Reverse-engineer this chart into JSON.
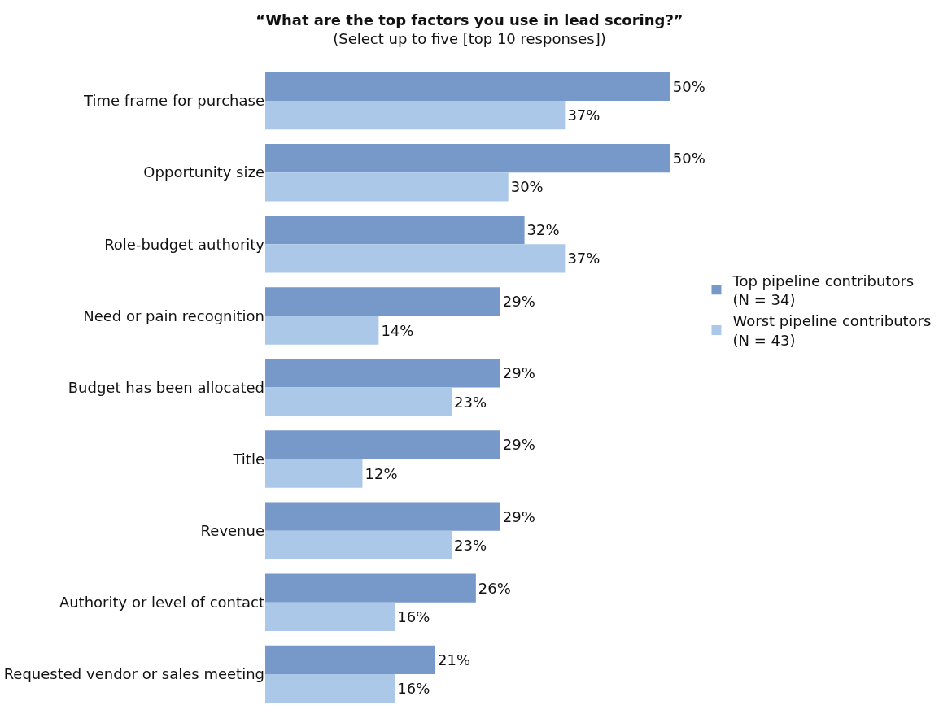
{
  "chart_data": {
    "type": "bar",
    "orientation": "horizontal",
    "title": "“What are the top factors you use in lead scoring?”",
    "subtitle": "(Select up to five [top 10 responses])",
    "categories": [
      "Time frame for purchase",
      "Opportunity size",
      "Role-budget authority",
      "Need or pain recognition",
      "Budget has been allocated",
      "Title",
      "Revenue",
      "Authority or level of contact",
      "Requested vendor or sales meeting"
    ],
    "series": [
      {
        "name": "Top pipeline contributors\n(N = 34)",
        "color": "#7799c9",
        "values": [
          50,
          50,
          32,
          29,
          29,
          29,
          29,
          26,
          21
        ],
        "value_labels": [
          "50%",
          "50%",
          "32%",
          "29%",
          "29%",
          "29%",
          "29%",
          "26%",
          "21%"
        ]
      },
      {
        "name": "Worst pipeline contributors\n(N = 43)",
        "color": "#abc8e8",
        "values": [
          37,
          30,
          37,
          14,
          23,
          12,
          23,
          16,
          16
        ],
        "value_labels": [
          "37%",
          "30%",
          "37%",
          "14%",
          "23%",
          "12%",
          "23%",
          "16%",
          "16%"
        ]
      }
    ],
    "legend": "right"
  }
}
